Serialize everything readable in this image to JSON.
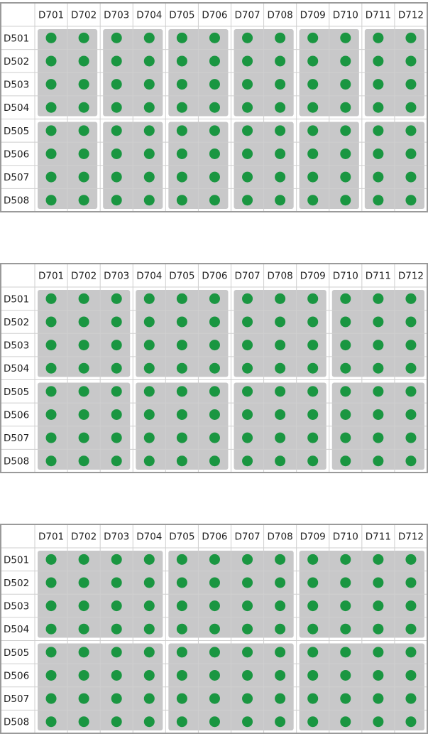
{
  "columns": [
    "D701",
    "D702",
    "D703",
    "D704",
    "D705",
    "D706",
    "D707",
    "D708",
    "D709",
    "D710",
    "D711",
    "D712"
  ],
  "rows": [
    "D501",
    "D502",
    "D503",
    "D504",
    "D505",
    "D506",
    "D507",
    "D508"
  ],
  "colors": {
    "well": "#1a9641",
    "group_fill": "#c8c8c9",
    "grid_line": "#cfcfcf",
    "border": "#9a9a9a"
  },
  "plates": [
    {
      "group_cols": 2,
      "group_rows": 4
    },
    {
      "group_cols": 3,
      "group_rows": 4
    },
    {
      "group_cols": 4,
      "group_rows": 4
    }
  ]
}
